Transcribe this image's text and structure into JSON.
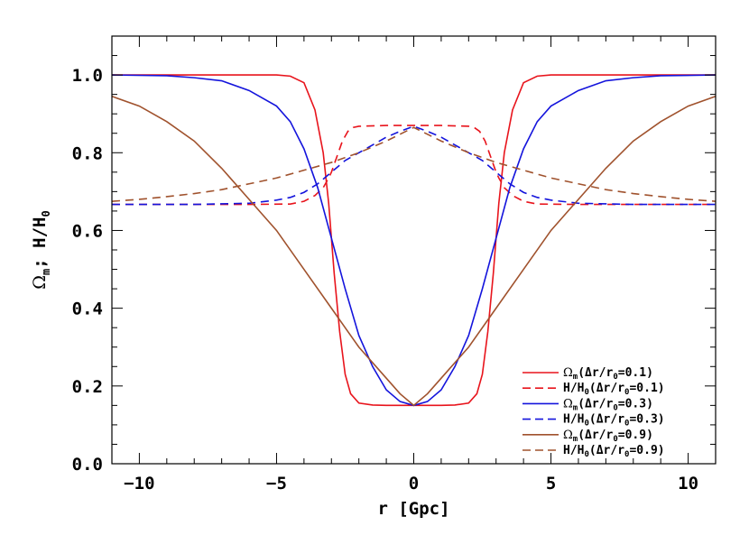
{
  "chart_data": {
    "type": "line",
    "xlabel": "r [Gpc]",
    "ylabel": {
      "omega": "Ω",
      "sub": "m",
      "rest": "; H/H",
      "sub2": "0"
    },
    "xlim": [
      -11,
      11
    ],
    "ylim": [
      0.0,
      1.1
    ],
    "x_ticks": [
      -10,
      -5,
      0,
      5,
      10
    ],
    "x_tick_labels": [
      "−10",
      "−5",
      "0",
      "5",
      "10"
    ],
    "y_ticks": [
      0.0,
      0.2,
      0.4,
      0.6,
      0.8,
      1.0
    ],
    "y_tick_labels": [
      "0.0",
      "0.2",
      "0.4",
      "0.6",
      "0.8",
      "1.0"
    ],
    "grid": false,
    "legend_position": "bottom-right",
    "colors": {
      "red": "#e8141c",
      "blue": "#1414dc",
      "brown": "#a0522d"
    },
    "series": [
      {
        "key": "om01",
        "legend": {
          "a": "Ω",
          "b": "m",
          "c": "(Δr/r",
          "d": "0",
          "e": "=0.1)"
        },
        "color": "#e8141c",
        "dash": false,
        "x": [
          -11,
          -5,
          -4.5,
          -4,
          -3.6,
          -3.3,
          -3.1,
          -3.0,
          -2.9,
          -2.7,
          -2.5,
          -2.3,
          -2,
          -1.5,
          -1,
          0,
          1,
          1.5,
          2,
          2.3,
          2.5,
          2.7,
          2.9,
          3.0,
          3.1,
          3.3,
          3.6,
          4,
          4.5,
          5,
          11
        ],
        "y": [
          1.0,
          1.0,
          0.997,
          0.98,
          0.91,
          0.8,
          0.67,
          0.58,
          0.49,
          0.34,
          0.23,
          0.18,
          0.156,
          0.151,
          0.15,
          0.15,
          0.15,
          0.151,
          0.156,
          0.18,
          0.23,
          0.34,
          0.49,
          0.58,
          0.67,
          0.8,
          0.91,
          0.98,
          0.997,
          1.0,
          1.0
        ]
      },
      {
        "key": "h01",
        "legend": {
          "a": "H/H",
          "b": "0",
          "c": "(Δr/r",
          "d": "0",
          "e": "=0.1)"
        },
        "color": "#e8141c",
        "dash": true,
        "x": [
          -11,
          -6,
          -4.5,
          -4,
          -3.6,
          -3.3,
          -3.1,
          -3.0,
          -2.8,
          -2.6,
          -2.4,
          -2.2,
          -2,
          -1,
          0,
          1,
          2,
          2.2,
          2.4,
          2.6,
          2.8,
          3.0,
          3.1,
          3.3,
          3.6,
          4,
          4.5,
          6,
          11
        ],
        "y": [
          0.667,
          0.667,
          0.668,
          0.675,
          0.69,
          0.71,
          0.735,
          0.75,
          0.79,
          0.83,
          0.855,
          0.865,
          0.868,
          0.87,
          0.87,
          0.87,
          0.868,
          0.865,
          0.855,
          0.83,
          0.79,
          0.75,
          0.735,
          0.71,
          0.69,
          0.675,
          0.668,
          0.667,
          0.667
        ]
      },
      {
        "key": "om03",
        "legend": {
          "a": "Ω",
          "b": "m",
          "c": "(Δr/r",
          "d": "0",
          "e": "=0.3)"
        },
        "color": "#1414dc",
        "dash": false,
        "x": [
          -11,
          -9,
          -8,
          -7,
          -6,
          -5,
          -4.5,
          -4,
          -3.5,
          -3,
          -2.5,
          -2,
          -1.5,
          -1,
          -0.5,
          0,
          0.5,
          1,
          1.5,
          2,
          2.5,
          3,
          3.5,
          4,
          4.5,
          5,
          6,
          7,
          8,
          9,
          11
        ],
        "y": [
          1.0,
          0.998,
          0.993,
          0.985,
          0.96,
          0.92,
          0.88,
          0.81,
          0.71,
          0.58,
          0.45,
          0.33,
          0.25,
          0.19,
          0.16,
          0.15,
          0.16,
          0.19,
          0.25,
          0.33,
          0.45,
          0.58,
          0.71,
          0.81,
          0.88,
          0.92,
          0.96,
          0.985,
          0.993,
          0.998,
          1.0
        ]
      },
      {
        "key": "h03",
        "legend": {
          "a": "H/H",
          "b": "0",
          "c": "(Δr/r",
          "d": "0",
          "e": "=0.3)"
        },
        "color": "#1414dc",
        "dash": true,
        "x": [
          -11,
          -8,
          -6,
          -5,
          -4.5,
          -4,
          -3.5,
          -3,
          -2.5,
          -2,
          -1.5,
          -1,
          -0.5,
          0,
          0.5,
          1,
          1.5,
          2,
          2.5,
          3,
          3.5,
          4,
          4.5,
          5,
          6,
          8,
          11
        ],
        "y": [
          0.667,
          0.667,
          0.67,
          0.678,
          0.685,
          0.698,
          0.72,
          0.75,
          0.78,
          0.8,
          0.82,
          0.84,
          0.855,
          0.868,
          0.855,
          0.84,
          0.82,
          0.8,
          0.78,
          0.75,
          0.72,
          0.698,
          0.685,
          0.678,
          0.67,
          0.667,
          0.667
        ]
      },
      {
        "key": "om09",
        "legend": {
          "a": "Ω",
          "b": "m",
          "c": "(Δr/r",
          "d": "0",
          "e": "=0.9)"
        },
        "color": "#a0522d",
        "dash": false,
        "x": [
          -11,
          -10,
          -9,
          -8,
          -7,
          -6,
          -5,
          -4,
          -3,
          -2,
          -1,
          -0.5,
          0,
          0.5,
          1,
          2,
          3,
          4,
          5,
          6,
          7,
          8,
          9,
          10,
          11
        ],
        "y": [
          0.945,
          0.92,
          0.88,
          0.83,
          0.76,
          0.68,
          0.6,
          0.5,
          0.4,
          0.3,
          0.22,
          0.18,
          0.15,
          0.18,
          0.22,
          0.3,
          0.4,
          0.5,
          0.6,
          0.68,
          0.76,
          0.83,
          0.88,
          0.92,
          0.945
        ]
      },
      {
        "key": "h09",
        "legend": {
          "a": "H/H",
          "b": "0",
          "c": "(Δr/r",
          "d": "0",
          "e": "=0.9)"
        },
        "color": "#a0522d",
        "dash": true,
        "x": [
          -11,
          -10,
          -9,
          -8,
          -7,
          -6,
          -5,
          -4,
          -3,
          -2,
          -1,
          0,
          1,
          2,
          3,
          4,
          5,
          6,
          7,
          8,
          9,
          10,
          11
        ],
        "y": [
          0.675,
          0.68,
          0.687,
          0.695,
          0.705,
          0.72,
          0.735,
          0.755,
          0.775,
          0.8,
          0.83,
          0.865,
          0.83,
          0.8,
          0.775,
          0.755,
          0.735,
          0.72,
          0.705,
          0.695,
          0.687,
          0.68,
          0.675
        ]
      }
    ]
  }
}
